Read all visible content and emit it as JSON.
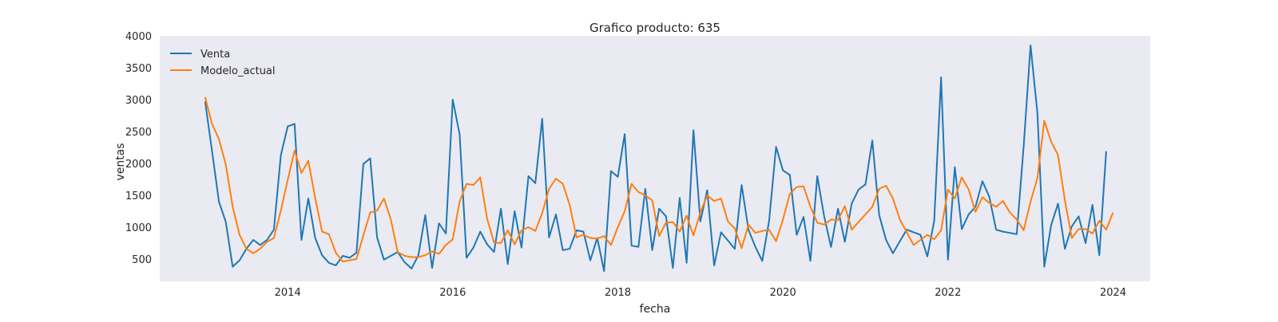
{
  "chart_data": {
    "type": "line",
    "title": "Grafico producto: 635",
    "xlabel": "fecha",
    "ylabel": "ventas",
    "xlim": [
      2012.45,
      2024.45
    ],
    "ylim": [
      150,
      4000
    ],
    "x_ticks": [
      "2014",
      "2016",
      "2018",
      "2020",
      "2022",
      "2024"
    ],
    "y_ticks": [
      "500",
      "1000",
      "1500",
      "2000",
      "2500",
      "3000",
      "3500",
      "4000"
    ],
    "grid": false,
    "legend_position": "top-left",
    "background_color": "#eaeaf2",
    "x_start_year": 2013,
    "x_step_months": 1,
    "series": [
      {
        "name": "Venta",
        "color": "#1f77b4",
        "values": [
          2970,
          2200,
          1400,
          1080,
          380,
          480,
          660,
          800,
          720,
          800,
          960,
          2130,
          2580,
          2620,
          800,
          1450,
          830,
          560,
          440,
          400,
          550,
          520,
          600,
          1990,
          2080,
          840,
          490,
          550,
          610,
          450,
          350,
          560,
          1190,
          360,
          1060,
          900,
          3000,
          2460,
          520,
          680,
          930,
          730,
          610,
          1290,
          420,
          1250,
          680,
          1800,
          1690,
          2700,
          840,
          1200,
          640,
          660,
          950,
          930,
          480,
          830,
          310,
          1880,
          1790,
          2460,
          710,
          690,
          1600,
          640,
          1290,
          1170,
          360,
          1460,
          440,
          2520,
          1090,
          1580,
          400,
          920,
          790,
          660,
          1660,
          960,
          690,
          470,
          1100,
          2260,
          1890,
          1820,
          880,
          1160,
          470,
          1800,
          1170,
          690,
          1290,
          770,
          1370,
          1590,
          1670,
          2360,
          1190,
          800,
          590,
          780,
          960,
          920,
          880,
          540,
          1100,
          3350,
          490,
          1940,
          970,
          1200,
          1320,
          1720,
          1480,
          960,
          930,
          910,
          890,
          2270,
          3850,
          2790,
          380,
          1030,
          1370,
          660,
          1010,
          1170,
          750,
          1350,
          560,
          2190
        ]
      },
      {
        "name": "Modelo_actual",
        "color": "#ff7f0e",
        "values": [
          3040,
          2620,
          2380,
          1980,
          1320,
          880,
          660,
          590,
          660,
          770,
          830,
          1260,
          1740,
          2200,
          1850,
          2040,
          1460,
          930,
          890,
          600,
          460,
          480,
          500,
          870,
          1230,
          1260,
          1450,
          1120,
          610,
          550,
          530,
          530,
          560,
          620,
          580,
          720,
          810,
          1400,
          1680,
          1660,
          1780,
          1130,
          760,
          750,
          950,
          730,
          950,
          1000,
          940,
          1220,
          1600,
          1760,
          1680,
          1350,
          840,
          880,
          830,
          820,
          860,
          720,
          1000,
          1250,
          1680,
          1550,
          1500,
          1420,
          860,
          1070,
          1080,
          930,
          1180,
          870,
          1230,
          1500,
          1410,
          1450,
          1090,
          980,
          670,
          1040,
          910,
          940,
          960,
          780,
          1120,
          1520,
          1630,
          1640,
          1320,
          1070,
          1040,
          1120,
          1110,
          1330,
          960,
          1080,
          1200,
          1320,
          1600,
          1650,
          1450,
          1120,
          920,
          720,
          800,
          880,
          810,
          950,
          1590,
          1450,
          1780,
          1590,
          1240,
          1470,
          1380,
          1320,
          1410,
          1230,
          1120,
          950,
          1400,
          1770,
          2670,
          2340,
          2130,
          1420,
          830,
          970,
          970,
          900,
          1100,
          960,
          1230
        ]
      }
    ]
  }
}
